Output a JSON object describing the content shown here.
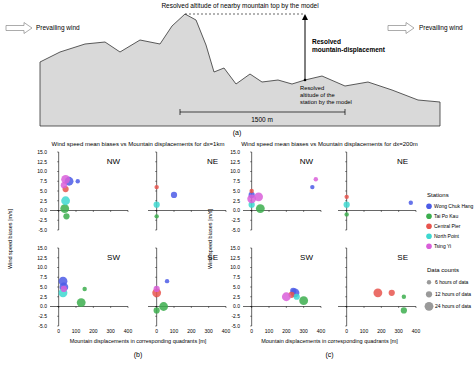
{
  "diagram": {
    "label": "(a)",
    "top_label": "Resolved altitude of nearby mountain top by the model",
    "wind_labels": [
      "Prevailing wind",
      "Prevailing wind"
    ],
    "displacement_label": [
      "Resolved",
      "mountain-displacement"
    ],
    "station_label": [
      "Resolved",
      "altitude of the",
      "station by the model"
    ],
    "scale_label": "1500 m"
  },
  "panels": [
    {
      "label": "(b)",
      "title": "Wind speed mean biases vs Mountain displacements for dx=1km",
      "xlabel": "Mountain displacements in corresponding quadrants [m]",
      "ylabel": "Wind speed biases [m/s]"
    },
    {
      "label": "(c)",
      "title": "Wind speed mean biases vs Mountain displacements for dx=200m",
      "xlabel": "Mountain displacements in corresponding quadrants [m]",
      "ylabel": "Wind speed biases [m/s]"
    }
  ],
  "legend": {
    "title": "Stations"
  },
  "size_legend": {
    "title": "Data counts",
    "entries": [
      {
        "label": "6 hours of data",
        "value": 6
      },
      {
        "label": "12 hours of data",
        "value": 12
      },
      {
        "label": "24 hours of data",
        "value": 24
      }
    ]
  },
  "chart_data": [
    {
      "type": "scatter",
      "title": "NW",
      "xlim": [
        -50,
        400
      ],
      "xticks": [
        0,
        100,
        200,
        300,
        400
      ],
      "ylim": [
        -5,
        15
      ],
      "yticks": [
        {
          "value": -5,
          "label": "-5.0"
        },
        {
          "value": -2.5,
          "label": "-2.5"
        },
        {
          "value": 0,
          "label": "0.0"
        },
        {
          "value": 2.5,
          "label": "2.5"
        },
        {
          "value": 5,
          "label": "5.0"
        },
        {
          "value": 7.5,
          "label": "7.5"
        },
        {
          "value": 10,
          "label": "10.0"
        },
        {
          "value": 12.5,
          "label": "12.5"
        },
        {
          "value": 15,
          "label": "15.0"
        }
      ],
      "tick_labels": "y",
      "series": [
        {
          "name": "Wong Chuk Hang",
          "color": "#4c5ce6",
          "x": [
            60,
            110
          ],
          "values": [
            7.5,
            7.5
          ],
          "sizes": [
            24,
            6
          ]
        },
        {
          "name": "Tai Po Kau",
          "color": "#3cae4e",
          "x": [
            35,
            45
          ],
          "values": [
            0.5,
            -1.5
          ],
          "sizes": [
            24,
            12
          ]
        },
        {
          "name": "Central Pier",
          "color": "#e8554e",
          "x": [
            40
          ],
          "values": [
            5.5
          ],
          "sizes": [
            12
          ]
        },
        {
          "name": "North Point",
          "color": "#3ed8d0",
          "x": [
            40
          ],
          "values": [
            2.5
          ],
          "sizes": [
            24
          ]
        },
        {
          "name": "Tsing Yi",
          "color": "#d95fd9",
          "x": [
            40,
            30
          ],
          "values": [
            8,
            6.5
          ],
          "sizes": [
            24,
            12
          ]
        }
      ]
    },
    {
      "type": "scatter",
      "title": "NE",
      "xlim": [
        -50,
        400
      ],
      "xticks": [
        0,
        100,
        200,
        300,
        400
      ],
      "ylim": [
        -5,
        15
      ],
      "yticks": [
        {
          "value": -5,
          "label": "-5.0"
        },
        {
          "value": -2.5,
          "label": "-2.5"
        },
        {
          "value": 0,
          "label": "0.0"
        },
        {
          "value": 2.5,
          "label": "2.5"
        },
        {
          "value": 5,
          "label": "5.0"
        },
        {
          "value": 7.5,
          "label": "7.5"
        },
        {
          "value": 10,
          "label": "10.0"
        },
        {
          "value": 12.5,
          "label": "12.5"
        },
        {
          "value": 15,
          "label": "15.0"
        }
      ],
      "tick_labels": false,
      "series": [
        {
          "name": "Wong Chuk Hang",
          "color": "#4c5ce6",
          "x": [
            100
          ],
          "values": [
            4
          ],
          "sizes": [
            12
          ]
        },
        {
          "name": "Tai Po Kau",
          "color": "#3cae4e",
          "x": [
            0
          ],
          "values": [
            -1.5
          ],
          "sizes": [
            6
          ]
        },
        {
          "name": "Central Pier",
          "color": "#e8554e",
          "x": [
            0
          ],
          "values": [
            6
          ],
          "sizes": [
            6
          ]
        },
        {
          "name": "North Point",
          "color": "#3ed8d0",
          "x": [
            0
          ],
          "values": [
            1.5
          ],
          "sizes": [
            12
          ]
        }
      ]
    },
    {
      "type": "scatter",
      "title": "SW",
      "xlim": [
        -50,
        400
      ],
      "xticks": [
        0,
        100,
        200,
        300,
        400
      ],
      "ylim": [
        -5,
        15
      ],
      "yticks": [
        {
          "value": -5,
          "label": "-5.0"
        },
        {
          "value": -2.5,
          "label": "-2.5"
        },
        {
          "value": 0,
          "label": "0.0"
        },
        {
          "value": 2.5,
          "label": "2.5"
        },
        {
          "value": 5,
          "label": "5.0"
        },
        {
          "value": 7.5,
          "label": "7.5"
        },
        {
          "value": 10,
          "label": "10.0"
        },
        {
          "value": 12.5,
          "label": "12.5"
        },
        {
          "value": 15,
          "label": "15.0"
        }
      ],
      "series": [
        {
          "name": "Wong Chuk Hang",
          "color": "#4c5ce6",
          "x": [
            25,
            30
          ],
          "values": [
            6.5,
            5
          ],
          "sizes": [
            24,
            24
          ]
        },
        {
          "name": "Tai Po Kau",
          "color": "#3cae4e",
          "x": [
            130,
            150
          ],
          "values": [
            1,
            4.5
          ],
          "sizes": [
            24,
            6
          ]
        },
        {
          "name": "North Point",
          "color": "#3ed8d0",
          "x": [
            25
          ],
          "values": [
            3.5
          ],
          "sizes": [
            24
          ]
        },
        {
          "name": "Tsing Yi",
          "color": "#d95fd9",
          "x": [
            30
          ],
          "values": [
            4.5
          ],
          "sizes": [
            12
          ]
        }
      ]
    },
    {
      "type": "scatter",
      "title": "SE",
      "xlim": [
        -50,
        400
      ],
      "xticks": [
        0,
        100,
        200,
        300,
        400
      ],
      "ylim": [
        -5,
        15
      ],
      "yticks": [
        {
          "value": -5,
          "label": "-5.0"
        },
        {
          "value": -2.5,
          "label": "-2.5"
        },
        {
          "value": 0,
          "label": "0.0"
        },
        {
          "value": 2.5,
          "label": "2.5"
        },
        {
          "value": 5,
          "label": "5.0"
        },
        {
          "value": 7.5,
          "label": "7.5"
        },
        {
          "value": 10,
          "label": "10.0"
        },
        {
          "value": 12.5,
          "label": "12.5"
        },
        {
          "value": 15,
          "label": "15.0"
        }
      ],
      "tick_labels": "x",
      "series": [
        {
          "name": "Wong Chuk Hang",
          "color": "#4c5ce6",
          "x": [
            60
          ],
          "values": [
            6.5
          ],
          "sizes": [
            6
          ]
        },
        {
          "name": "Tai Po Kau",
          "color": "#3cae4e",
          "x": [
            40,
            0
          ],
          "values": [
            0,
            -1
          ],
          "sizes": [
            24,
            12
          ]
        },
        {
          "name": "Central Pier",
          "color": "#e8554e",
          "x": [
            0
          ],
          "values": [
            3.5
          ],
          "sizes": [
            24
          ]
        },
        {
          "name": "Tsing Yi",
          "color": "#d95fd9",
          "x": [
            0
          ],
          "values": [
            4.5
          ],
          "sizes": [
            12
          ]
        }
      ]
    },
    {
      "type": "scatter",
      "title": "NW",
      "xlim": [
        -50,
        400
      ],
      "xticks": [
        0,
        100,
        200,
        300,
        400
      ],
      "ylim": [
        -5,
        15
      ],
      "yticks": [
        {
          "value": -5,
          "label": "-5.0"
        },
        {
          "value": -2.5,
          "label": "-2.5"
        },
        {
          "value": 0,
          "label": "0.0"
        },
        {
          "value": 2.5,
          "label": "2.5"
        },
        {
          "value": 5,
          "label": "5.0"
        },
        {
          "value": 7.5,
          "label": "7.5"
        },
        {
          "value": 10,
          "label": "10.0"
        },
        {
          "value": 12.5,
          "label": "12.5"
        },
        {
          "value": 15,
          "label": "15.0"
        }
      ],
      "tick_labels": "y",
      "series": [
        {
          "name": "Wong Chuk Hang",
          "color": "#4c5ce6",
          "x": [
            0,
            350
          ],
          "values": [
            4,
            6
          ],
          "sizes": [
            12,
            6
          ]
        },
        {
          "name": "Tai Po Kau",
          "color": "#3cae4e",
          "x": [
            50
          ],
          "values": [
            0.5
          ],
          "sizes": [
            24
          ]
        },
        {
          "name": "Central Pier",
          "color": "#e8554e",
          "x": [
            0
          ],
          "values": [
            5
          ],
          "sizes": [
            6
          ]
        },
        {
          "name": "North Point",
          "color": "#3ed8d0",
          "x": [
            0
          ],
          "values": [
            1.5
          ],
          "sizes": [
            12
          ]
        },
        {
          "name": "Tsing Yi",
          "color": "#d95fd9",
          "x": [
            0,
            40,
            370
          ],
          "values": [
            3,
            3.5,
            8
          ],
          "sizes": [
            24,
            24,
            6
          ]
        }
      ]
    },
    {
      "type": "scatter",
      "title": "NE",
      "xlim": [
        -50,
        400
      ],
      "xticks": [
        0,
        100,
        200,
        300,
        400
      ],
      "ylim": [
        -5,
        15
      ],
      "yticks": [
        {
          "value": -5,
          "label": "-5.0"
        },
        {
          "value": -2.5,
          "label": "-2.5"
        },
        {
          "value": 0,
          "label": "0.0"
        },
        {
          "value": 2.5,
          "label": "2.5"
        },
        {
          "value": 5,
          "label": "5.0"
        },
        {
          "value": 7.5,
          "label": "7.5"
        },
        {
          "value": 10,
          "label": "10.0"
        },
        {
          "value": 12.5,
          "label": "12.5"
        },
        {
          "value": 15,
          "label": "15.0"
        }
      ],
      "tick_labels": false,
      "series": [
        {
          "name": "Wong Chuk Hang",
          "color": "#4c5ce6",
          "x": [
            370
          ],
          "values": [
            2
          ],
          "sizes": [
            6
          ]
        },
        {
          "name": "Tai Po Kau",
          "color": "#3cae4e",
          "x": [
            0
          ],
          "values": [
            -1
          ],
          "sizes": [
            6
          ]
        },
        {
          "name": "Central Pier",
          "color": "#e8554e",
          "x": [
            0
          ],
          "values": [
            3.5
          ],
          "sizes": [
            6
          ]
        },
        {
          "name": "North Point",
          "color": "#3ed8d0",
          "x": [
            0
          ],
          "values": [
            1.5
          ],
          "sizes": [
            12
          ]
        }
      ]
    },
    {
      "type": "scatter",
      "title": "SW",
      "xlim": [
        -50,
        400
      ],
      "xticks": [
        0,
        100,
        200,
        300,
        400
      ],
      "ylim": [
        -5,
        15
      ],
      "yticks": [
        {
          "value": -5,
          "label": "-5.0"
        },
        {
          "value": -2.5,
          "label": "-2.5"
        },
        {
          "value": 0,
          "label": "0.0"
        },
        {
          "value": 2.5,
          "label": "2.5"
        },
        {
          "value": 5,
          "label": "5.0"
        },
        {
          "value": 7.5,
          "label": "7.5"
        },
        {
          "value": 10,
          "label": "10.0"
        },
        {
          "value": 12.5,
          "label": "12.5"
        },
        {
          "value": 15,
          "label": "15.0"
        }
      ],
      "series": [
        {
          "name": "Wong Chuk Hang",
          "color": "#4c5ce6",
          "x": [
            250,
            240
          ],
          "values": [
            3.5,
            4
          ],
          "sizes": [
            24,
            12
          ]
        },
        {
          "name": "Tai Po Kau",
          "color": "#3cae4e",
          "x": [
            300
          ],
          "values": [
            1.5
          ],
          "sizes": [
            24
          ]
        },
        {
          "name": "Central Pier",
          "color": "#e8554e",
          "x": [
            230
          ],
          "values": [
            3
          ],
          "sizes": [
            12
          ]
        },
        {
          "name": "North Point",
          "color": "#3ed8d0",
          "x": [
            260
          ],
          "values": [
            2.5
          ],
          "sizes": [
            12
          ]
        },
        {
          "name": "Tsing Yi",
          "color": "#d95fd9",
          "x": [
            200
          ],
          "values": [
            2.5
          ],
          "sizes": [
            24
          ]
        }
      ]
    },
    {
      "type": "scatter",
      "title": "SE",
      "xlim": [
        -50,
        400
      ],
      "xticks": [
        0,
        100,
        200,
        300,
        400
      ],
      "ylim": [
        -5,
        15
      ],
      "yticks": [
        {
          "value": -5,
          "label": "-5.0"
        },
        {
          "value": -2.5,
          "label": "-2.5"
        },
        {
          "value": 0,
          "label": "0.0"
        },
        {
          "value": 2.5,
          "label": "2.5"
        },
        {
          "value": 5,
          "label": "5.0"
        },
        {
          "value": 7.5,
          "label": "7.5"
        },
        {
          "value": 10,
          "label": "10.0"
        },
        {
          "value": 12.5,
          "label": "12.5"
        },
        {
          "value": 15,
          "label": "15.0"
        }
      ],
      "tick_labels": "x",
      "series": [
        {
          "name": "Tai Po Kau",
          "color": "#3cae4e",
          "x": [
            330,
            330
          ],
          "values": [
            2.5,
            -1
          ],
          "sizes": [
            6,
            12
          ]
        },
        {
          "name": "Central Pier",
          "color": "#e8554e",
          "x": [
            180,
            260
          ],
          "values": [
            3.5,
            3.5
          ],
          "sizes": [
            24,
            12
          ]
        }
      ]
    }
  ]
}
